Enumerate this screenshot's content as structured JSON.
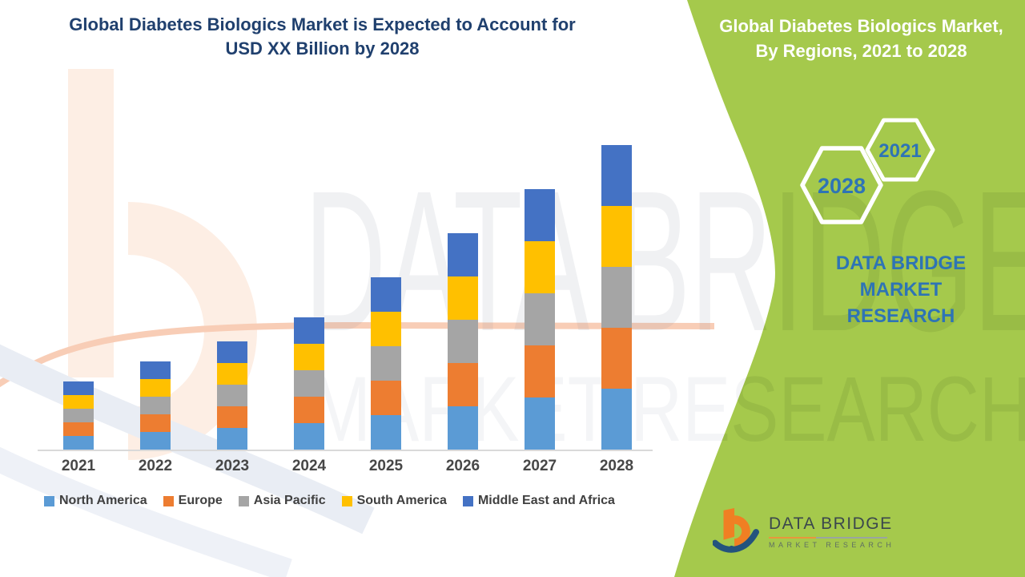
{
  "page": {
    "background": "#ffffff",
    "accent_green": "#a5c94c"
  },
  "header": {
    "left_title_line1": "Global Diabetes Biologics Market is Expected to Account for",
    "left_title_line2": "USD XX Billion by 2028",
    "title_color": "#20406e"
  },
  "right_panel": {
    "title_line1": "Global Diabetes Biologics Market,",
    "title_line2": "By Regions, 2021 to 2028",
    "hexagon_far_year": "2028",
    "hexagon_near_year": "2021",
    "year_color": "#2e74b5",
    "brand_line1": "DATA BRIDGE MARKET",
    "brand_line2": "RESEARCH"
  },
  "footer_logo": {
    "name": "DATA BRIDGE",
    "tagline": "MARKET RESEARCH"
  },
  "watermark": {
    "line1": "DATA BRIDGE",
    "line2": "MARKET RESEARCH"
  },
  "chart_data": {
    "type": "bar",
    "stacked": true,
    "title": "Global Diabetes Biologics Market, By Regions, 2021 to 2028",
    "xlabel": "",
    "ylabel": "",
    "y_axis_visible": false,
    "grid": false,
    "legend_position": "bottom",
    "units": "USD Billion (shown as XX; values estimated in relative units)",
    "categories": [
      "2021",
      "2022",
      "2023",
      "2024",
      "2025",
      "2026",
      "2027",
      "2028"
    ],
    "series": [
      {
        "name": "North America",
        "color": "#5b9bd5",
        "values": [
          17,
          22,
          27,
          33,
          43,
          54,
          65,
          76
        ]
      },
      {
        "name": "Europe",
        "color": "#ed7d31",
        "values": [
          17,
          22,
          27,
          33,
          43,
          54,
          65,
          76
        ]
      },
      {
        "name": "Asia Pacific",
        "color": "#a5a5a5",
        "values": [
          17,
          22,
          27,
          33,
          43,
          54,
          65,
          76
        ]
      },
      {
        "name": "South America",
        "color": "#ffc000",
        "values": [
          17,
          22,
          27,
          33,
          43,
          54,
          65,
          76
        ]
      },
      {
        "name": "Middle East and Africa",
        "color": "#4472c4",
        "values": [
          17,
          22,
          27,
          33,
          43,
          54,
          65,
          76
        ]
      }
    ],
    "totals": [
      85,
      110,
      135,
      165,
      215,
      270,
      325,
      380
    ]
  }
}
